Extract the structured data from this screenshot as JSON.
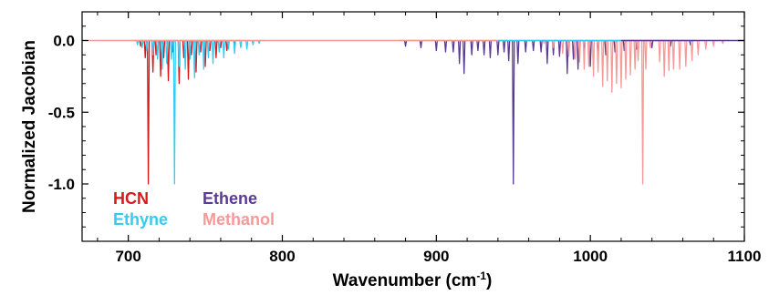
{
  "chart_data": {
    "type": "line",
    "title": "",
    "xlabel_main": "Wavenumber (cm",
    "xlabel_sup": "-1",
    "xlabel_end": ")",
    "ylabel": "Normalized Jacobian",
    "xlim": [
      670,
      1100
    ],
    "ylim": [
      -1.4,
      0.2
    ],
    "x_ticks": [
      700,
      800,
      900,
      1000,
      1100
    ],
    "x_tick_labels": [
      "700",
      "800",
      "900",
      "1000",
      "1100"
    ],
    "y_ticks": [
      0.0,
      -0.5,
      -1.0
    ],
    "y_tick_labels": [
      "0.0",
      "-0.5",
      "-1.0"
    ],
    "grid": false,
    "legend_position": "bottom-left, inside plot",
    "series": [
      {
        "name": "HCN",
        "color": "#d7191c",
        "peaks": [
          [
            708,
            -0.04
          ],
          [
            711,
            -0.12
          ],
          [
            713,
            -1.0
          ],
          [
            716,
            -0.22
          ],
          [
            718,
            -0.1
          ],
          [
            721,
            -0.25
          ],
          [
            723,
            -0.12
          ],
          [
            726,
            -0.28
          ],
          [
            729,
            -0.08
          ],
          [
            733,
            -0.3
          ],
          [
            736,
            -0.12
          ],
          [
            739,
            -0.27
          ],
          [
            741,
            -0.1
          ],
          [
            744,
            -0.22
          ],
          [
            747,
            -0.08
          ],
          [
            750,
            -0.18
          ],
          [
            753,
            -0.07
          ],
          [
            757,
            -0.12
          ],
          [
            760,
            -0.05
          ],
          [
            764,
            -0.07
          ],
          [
            769,
            -0.03
          ]
        ]
      },
      {
        "name": "Ethyne",
        "color": "#33ccf2",
        "peaks": [
          [
            706,
            -0.03
          ],
          [
            709,
            -0.05
          ],
          [
            712,
            -0.07
          ],
          [
            716,
            -0.1
          ],
          [
            719,
            -0.13
          ],
          [
            722,
            -0.2
          ],
          [
            725,
            -0.16
          ],
          [
            728,
            -0.13
          ],
          [
            730,
            -1.0
          ],
          [
            733,
            -0.18
          ],
          [
            737,
            -0.2
          ],
          [
            740,
            -0.13
          ],
          [
            743,
            -0.26
          ],
          [
            746,
            -0.1
          ],
          [
            749,
            -0.2
          ],
          [
            752,
            -0.12
          ],
          [
            755,
            -0.16
          ],
          [
            759,
            -0.08
          ],
          [
            762,
            -0.12
          ],
          [
            765,
            -0.06
          ],
          [
            769,
            -0.09
          ],
          [
            773,
            -0.05
          ],
          [
            777,
            -0.06
          ],
          [
            781,
            -0.03
          ],
          [
            785,
            -0.02
          ]
        ]
      },
      {
        "name": "Ethene",
        "color": "#5b3a96",
        "peaks": [
          [
            880,
            -0.04
          ],
          [
            890,
            -0.05
          ],
          [
            900,
            -0.07
          ],
          [
            906,
            -0.08
          ],
          [
            911,
            -0.08
          ],
          [
            915,
            -0.16
          ],
          [
            918,
            -0.23
          ],
          [
            923,
            -0.1
          ],
          [
            927,
            -0.07
          ],
          [
            931,
            -0.1
          ],
          [
            935,
            -0.12
          ],
          [
            940,
            -0.1
          ],
          [
            944,
            -0.08
          ],
          [
            947,
            -0.14
          ],
          [
            950,
            -1.0
          ],
          [
            953,
            -0.16
          ],
          [
            958,
            -0.08
          ],
          [
            963,
            -0.07
          ],
          [
            968,
            -0.08
          ],
          [
            972,
            -0.16
          ],
          [
            976,
            -0.1
          ],
          [
            980,
            -0.11
          ],
          [
            985,
            -0.23
          ],
          [
            989,
            -0.13
          ],
          [
            992,
            -0.2
          ],
          [
            996,
            -0.1
          ],
          [
            1000,
            -0.18
          ],
          [
            1005,
            -0.12
          ],
          [
            1010,
            -0.1
          ],
          [
            1016,
            -0.08
          ],
          [
            1022,
            -0.07
          ],
          [
            1030,
            -0.06
          ],
          [
            1040,
            -0.05
          ],
          [
            1052,
            -0.04
          ],
          [
            1065,
            -0.03
          ]
        ]
      },
      {
        "name": "Methanol",
        "color": "#f59a98",
        "peaks": [
          [
            970,
            -0.02
          ],
          [
            976,
            -0.05
          ],
          [
            982,
            -0.09
          ],
          [
            986,
            -0.11
          ],
          [
            990,
            -0.13
          ],
          [
            993,
            -0.15
          ],
          [
            996,
            -0.2
          ],
          [
            999,
            -0.18
          ],
          [
            1002,
            -0.25
          ],
          [
            1005,
            -0.22
          ],
          [
            1008,
            -0.32
          ],
          [
            1011,
            -0.28
          ],
          [
            1014,
            -0.36
          ],
          [
            1017,
            -0.3
          ],
          [
            1020,
            -0.33
          ],
          [
            1023,
            -0.27
          ],
          [
            1026,
            -0.24
          ],
          [
            1029,
            -0.2
          ],
          [
            1031,
            -0.14
          ],
          [
            1034,
            -1.0
          ],
          [
            1036,
            -0.2
          ],
          [
            1039,
            -0.05
          ],
          [
            1045,
            -0.15
          ],
          [
            1048,
            -0.25
          ],
          [
            1051,
            -0.21
          ],
          [
            1054,
            -0.2
          ],
          [
            1058,
            -0.2
          ],
          [
            1062,
            -0.18
          ],
          [
            1066,
            -0.14
          ],
          [
            1070,
            -0.1
          ],
          [
            1075,
            -0.06
          ],
          [
            1080,
            -0.04
          ],
          [
            1086,
            -0.02
          ]
        ]
      }
    ]
  },
  "legend": {
    "hcn": "HCN",
    "ethyne": "Ethyne",
    "ethene": "Ethene",
    "methanol": "Methanol"
  }
}
